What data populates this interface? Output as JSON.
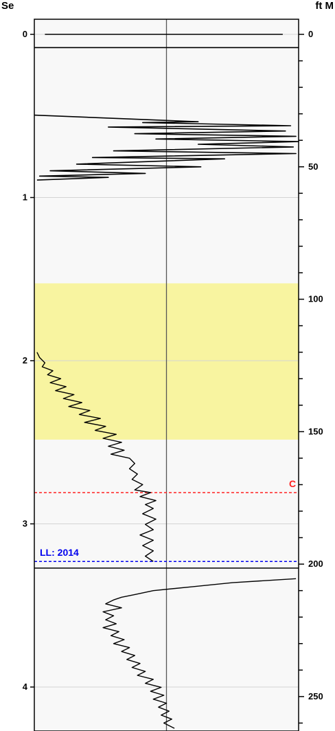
{
  "chart_data": {
    "type": "line",
    "left_axis": {
      "label": "Se",
      "range": [
        0,
        4.25
      ],
      "ticks": [
        "0",
        "1",
        "2",
        "3",
        "4"
      ]
    },
    "right_axis": {
      "label": "ft M",
      "range": [
        0,
        262
      ],
      "ticks": [
        "0",
        "50",
        "100",
        "150",
        "200",
        "250"
      ]
    },
    "shaded_band": {
      "from_depth_ft": 94,
      "to_depth_ft": 153,
      "color": "#f8f4a0"
    },
    "horizontal_lines": [
      {
        "depth_ft": 5,
        "style": "solid",
        "color": "#000000",
        "label": ""
      },
      {
        "depth_ft": 173,
        "style": "dashed",
        "color": "#ff2020",
        "label": "C"
      },
      {
        "depth_ft": 199,
        "style": "dashed",
        "color": "#0000ee",
        "label": "LL: 2014"
      },
      {
        "depth_ft": 201.5,
        "style": "solid",
        "color": "#000000",
        "label": ""
      }
    ],
    "center_line": true,
    "grid": true,
    "colors": {
      "plot_bg": "#f8f8f8",
      "grid": "#d4d4d4",
      "trace": "#000000"
    },
    "series": [
      {
        "points": [
          [
            0.04,
            0
          ],
          [
            0.11,
            0
          ],
          [
            0.26,
            0
          ],
          [
            0.94,
            0
          ]
        ]
      },
      {
        "points": [
          [
            0.0,
            30.5
          ],
          [
            0.62,
            33.0
          ],
          [
            0.41,
            33.3
          ],
          [
            0.97,
            34.5
          ],
          [
            0.28,
            35.0
          ],
          [
            0.95,
            36.5
          ],
          [
            0.38,
            37.5
          ],
          [
            0.99,
            38.5
          ],
          [
            0.46,
            39.5
          ],
          [
            1.0,
            40.5
          ],
          [
            0.62,
            41.5
          ],
          [
            0.98,
            42.5
          ],
          [
            0.3,
            44.0
          ],
          [
            0.99,
            45.0
          ],
          [
            0.22,
            46.5
          ],
          [
            0.72,
            47.0
          ],
          [
            0.16,
            49.0
          ],
          [
            0.63,
            50.0
          ],
          [
            0.06,
            51.5
          ],
          [
            0.42,
            52.5
          ],
          [
            0.02,
            53.5
          ],
          [
            0.28,
            54.0
          ],
          [
            0.01,
            55.0
          ]
        ]
      },
      {
        "points": [
          [
            0.01,
            120.0
          ],
          [
            0.02,
            122.0
          ],
          [
            0.04,
            124.0
          ],
          [
            0.03,
            125.5
          ],
          [
            0.07,
            127.0
          ],
          [
            0.05,
            128.5
          ],
          [
            0.1,
            130.0
          ],
          [
            0.06,
            131.5
          ],
          [
            0.12,
            133.0
          ],
          [
            0.08,
            134.5
          ],
          [
            0.15,
            136.0
          ],
          [
            0.11,
            137.5
          ],
          [
            0.18,
            139.0
          ],
          [
            0.13,
            140.5
          ],
          [
            0.21,
            142.0
          ],
          [
            0.17,
            143.5
          ],
          [
            0.25,
            145.0
          ],
          [
            0.19,
            146.5
          ],
          [
            0.27,
            148.0
          ],
          [
            0.23,
            149.5
          ],
          [
            0.31,
            151.0
          ],
          [
            0.26,
            152.5
          ],
          [
            0.33,
            154.0
          ],
          [
            0.28,
            155.5
          ],
          [
            0.34,
            157.0
          ],
          [
            0.29,
            158.5
          ],
          [
            0.36,
            160.0
          ],
          [
            0.38,
            162.0
          ],
          [
            0.36,
            164.0
          ],
          [
            0.39,
            166.0
          ],
          [
            0.37,
            168.0
          ],
          [
            0.41,
            170.0
          ],
          [
            0.38,
            172.0
          ],
          [
            0.44,
            173.0
          ],
          [
            0.4,
            174.5
          ],
          [
            0.46,
            176.0
          ],
          [
            0.42,
            177.5
          ],
          [
            0.45,
            179.0
          ],
          [
            0.41,
            181.0
          ],
          [
            0.46,
            183.0
          ],
          [
            0.42,
            185.0
          ],
          [
            0.45,
            187.0
          ],
          [
            0.4,
            189.0
          ],
          [
            0.45,
            191.0
          ],
          [
            0.41,
            193.0
          ],
          [
            0.45,
            195.0
          ],
          [
            0.42,
            197.0
          ],
          [
            0.45,
            199.0
          ]
        ]
      },
      {
        "points": [
          [
            0.99,
            205.5
          ],
          [
            0.75,
            207.0
          ],
          [
            0.6,
            208.5
          ],
          [
            0.45,
            210.0
          ],
          [
            0.38,
            211.5
          ],
          [
            0.33,
            212.5
          ],
          [
            0.3,
            213.5
          ],
          [
            0.27,
            215.0
          ],
          [
            0.33,
            216.5
          ],
          [
            0.26,
            218.0
          ],
          [
            0.3,
            219.5
          ],
          [
            0.27,
            221.0
          ],
          [
            0.31,
            222.5
          ],
          [
            0.26,
            224.0
          ],
          [
            0.32,
            225.5
          ],
          [
            0.29,
            227.0
          ],
          [
            0.34,
            228.5
          ],
          [
            0.3,
            230.0
          ],
          [
            0.36,
            231.5
          ],
          [
            0.33,
            233.0
          ],
          [
            0.38,
            234.5
          ],
          [
            0.35,
            236.0
          ],
          [
            0.4,
            237.5
          ],
          [
            0.37,
            239.0
          ],
          [
            0.42,
            240.5
          ],
          [
            0.39,
            242.0
          ],
          [
            0.45,
            243.5
          ],
          [
            0.42,
            245.0
          ],
          [
            0.48,
            246.5
          ],
          [
            0.44,
            248.0
          ],
          [
            0.49,
            249.5
          ],
          [
            0.45,
            251.0
          ],
          [
            0.5,
            252.5
          ],
          [
            0.47,
            254.0
          ],
          [
            0.51,
            255.5
          ],
          [
            0.48,
            257.0
          ],
          [
            0.52,
            258.5
          ],
          [
            0.49,
            260.0
          ],
          [
            0.53,
            262.0
          ]
        ]
      }
    ]
  }
}
